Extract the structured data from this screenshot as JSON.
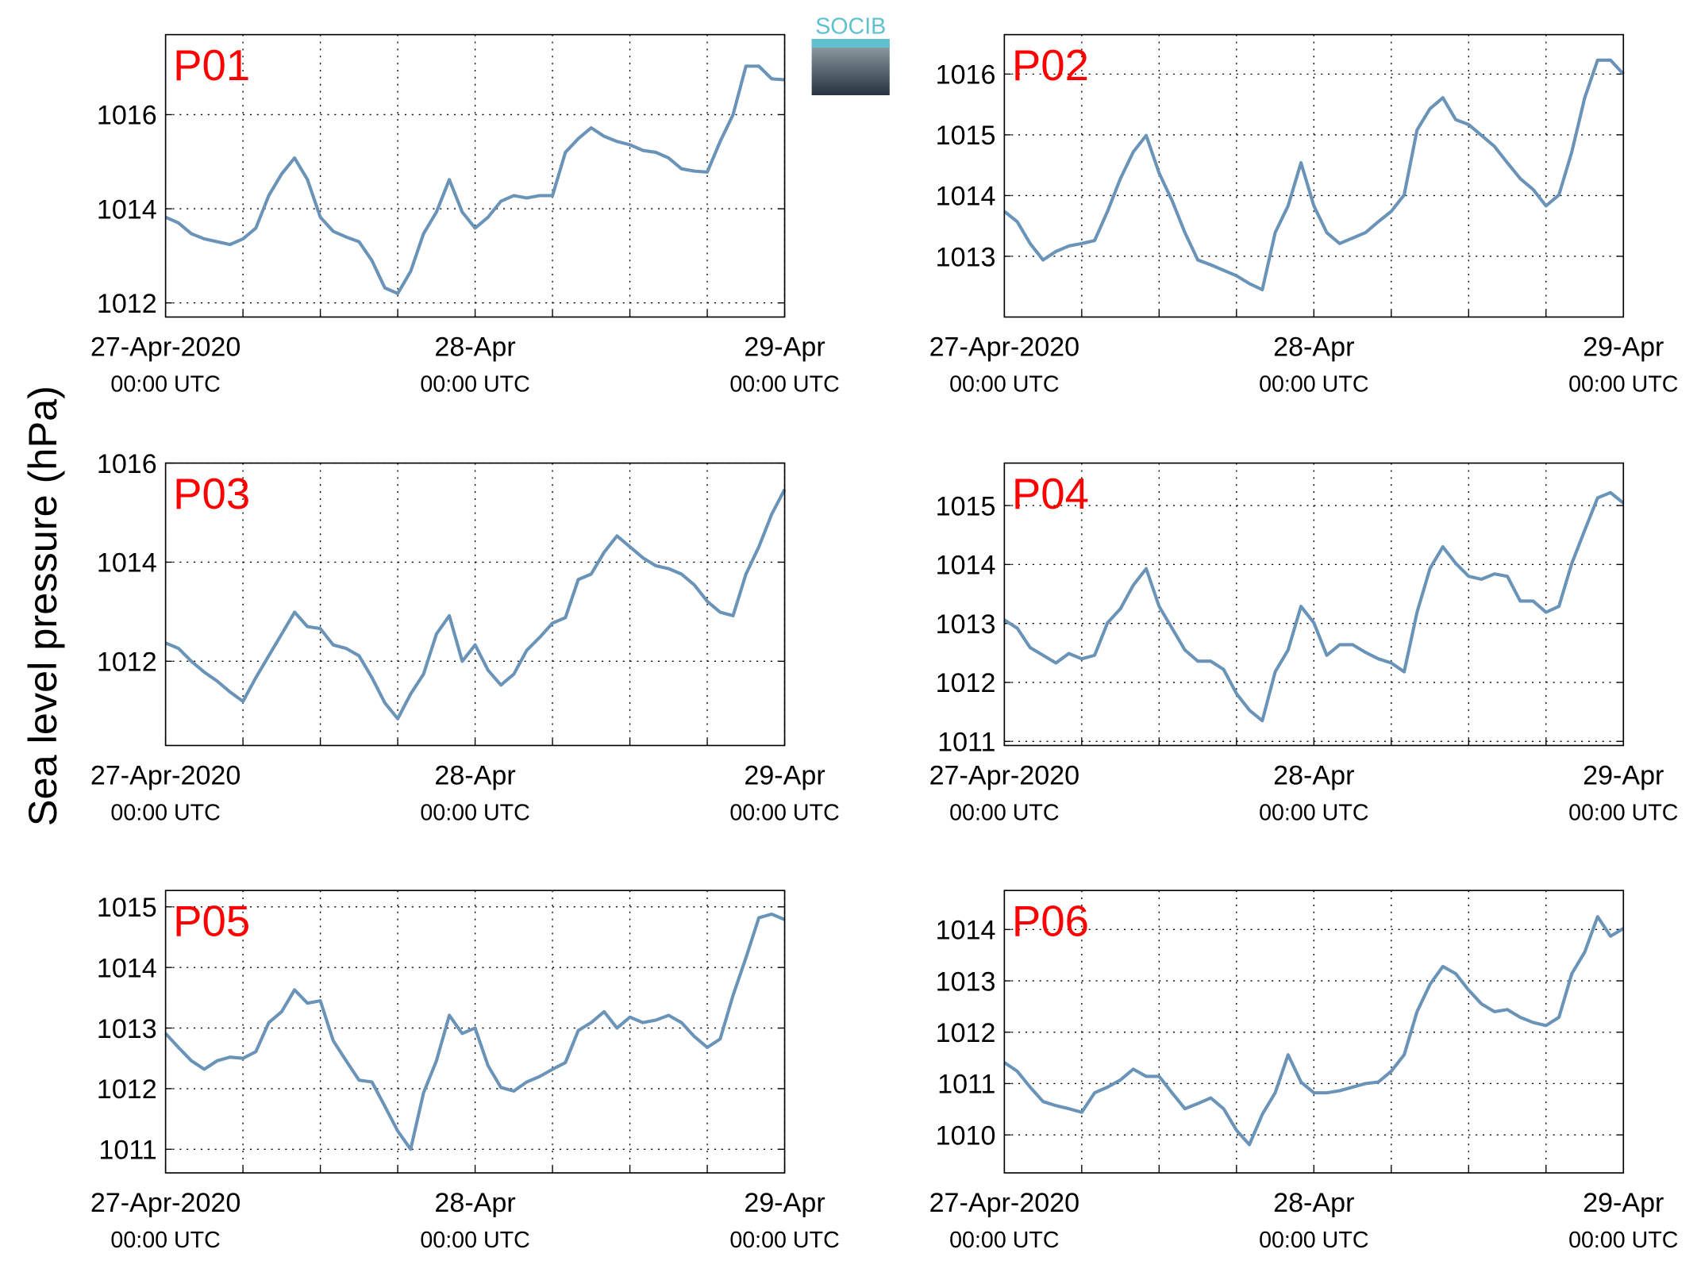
{
  "ylabel": "Sea level pressure (hPa)",
  "logo": "SOCIB",
  "chart_data": [
    {
      "type": "line",
      "title": "P01",
      "color": "#6a93b8",
      "grid": true,
      "xlim": [
        "2020-04-27T00:00",
        "2020-04-29T00:00"
      ],
      "xticks": [
        {
          "value": "2020-04-27T00:00",
          "label": "27-Apr-2020",
          "time_label": "00:00 UTC"
        },
        {
          "value": "2020-04-28T00:00",
          "label": "28-Apr",
          "time_label": "00:00 UTC"
        },
        {
          "value": "2020-04-29T00:00",
          "label": "29-Apr",
          "time_label": "00:00 UTC"
        }
      ],
      "xminor": [
        "2020-04-27T06:00",
        "2020-04-27T12:00",
        "2020-04-27T18:00",
        "2020-04-28T06:00",
        "2020-04-28T12:00",
        "2020-04-28T18:00"
      ],
      "ylim": [
        1011.7,
        1017.7
      ],
      "yticks": [
        1012,
        1014,
        1016
      ],
      "x": [
        "2020-04-27T00:00",
        "2020-04-27T01:00",
        "2020-04-27T02:00",
        "2020-04-27T03:00",
        "2020-04-27T04:00",
        "2020-04-27T05:00",
        "2020-04-27T06:00",
        "2020-04-27T07:00",
        "2020-04-27T08:00",
        "2020-04-27T09:00",
        "2020-04-27T10:00",
        "2020-04-27T11:00",
        "2020-04-27T12:00",
        "2020-04-27T13:00",
        "2020-04-27T14:00",
        "2020-04-27T15:00",
        "2020-04-27T16:00",
        "2020-04-27T17:00",
        "2020-04-27T18:00",
        "2020-04-27T19:00",
        "2020-04-27T20:00",
        "2020-04-27T21:00",
        "2020-04-27T22:00",
        "2020-04-27T23:00",
        "2020-04-28T00:00",
        "2020-04-28T01:00",
        "2020-04-28T02:00",
        "2020-04-28T03:00",
        "2020-04-28T04:00",
        "2020-04-28T05:00",
        "2020-04-28T06:00",
        "2020-04-28T07:00",
        "2020-04-28T08:00",
        "2020-04-28T09:00",
        "2020-04-28T10:00",
        "2020-04-28T11:00",
        "2020-04-28T12:00",
        "2020-04-28T13:00",
        "2020-04-28T14:00",
        "2020-04-28T15:00",
        "2020-04-28T16:00",
        "2020-04-28T17:00",
        "2020-04-28T18:00",
        "2020-04-28T19:00",
        "2020-04-28T20:00",
        "2020-04-28T21:00",
        "2020-04-28T22:00",
        "2020-04-28T23:00",
        "2020-04-29T00:00"
      ],
      "values": [
        1013.82,
        1013.7,
        1013.47,
        1013.36,
        1013.3,
        1013.24,
        1013.36,
        1013.59,
        1014.28,
        1014.74,
        1015.08,
        1014.62,
        1013.82,
        1013.52,
        1013.4,
        1013.3,
        1012.9,
        1012.32,
        1012.2,
        1012.67,
        1013.47,
        1013.93,
        1014.62,
        1013.93,
        1013.59,
        1013.82,
        1014.16,
        1014.28,
        1014.23,
        1014.28,
        1014.28,
        1015.2,
        1015.49,
        1015.72,
        1015.54,
        1015.43,
        1015.36,
        1015.24,
        1015.2,
        1015.08,
        1014.85,
        1014.8,
        1014.78,
        1015.43,
        1016.0,
        1017.03,
        1017.03,
        1016.76,
        1016.74
      ]
    },
    {
      "type": "line",
      "title": "P02",
      "color": "#6a93b8",
      "grid": true,
      "xlim": [
        "2020-04-27T00:00",
        "2020-04-29T00:00"
      ],
      "xticks": [
        {
          "value": "2020-04-27T00:00",
          "label": "27-Apr-2020",
          "time_label": "00:00 UTC"
        },
        {
          "value": "2020-04-28T00:00",
          "label": "28-Apr",
          "time_label": "00:00 UTC"
        },
        {
          "value": "2020-04-29T00:00",
          "label": "29-Apr",
          "time_label": "00:00 UTC"
        }
      ],
      "xminor": [
        "2020-04-27T06:00",
        "2020-04-27T12:00",
        "2020-04-27T18:00",
        "2020-04-28T06:00",
        "2020-04-28T12:00",
        "2020-04-28T18:00"
      ],
      "ylim": [
        1012.0,
        1016.65
      ],
      "yticks": [
        1013,
        1014,
        1015,
        1016
      ],
      "x": [
        "2020-04-27T00:00",
        "2020-04-27T01:00",
        "2020-04-27T02:00",
        "2020-04-27T03:00",
        "2020-04-27T04:00",
        "2020-04-27T05:00",
        "2020-04-27T06:00",
        "2020-04-27T07:00",
        "2020-04-27T08:00",
        "2020-04-27T09:00",
        "2020-04-27T10:00",
        "2020-04-27T11:00",
        "2020-04-27T12:00",
        "2020-04-27T13:00",
        "2020-04-27T14:00",
        "2020-04-27T15:00",
        "2020-04-27T16:00",
        "2020-04-27T17:00",
        "2020-04-27T18:00",
        "2020-04-27T19:00",
        "2020-04-27T20:00",
        "2020-04-27T21:00",
        "2020-04-27T22:00",
        "2020-04-27T23:00",
        "2020-04-28T00:00",
        "2020-04-28T01:00",
        "2020-04-28T02:00",
        "2020-04-28T03:00",
        "2020-04-28T04:00",
        "2020-04-28T05:00",
        "2020-04-28T06:00",
        "2020-04-28T07:00",
        "2020-04-28T08:00",
        "2020-04-28T09:00",
        "2020-04-28T10:00",
        "2020-04-28T11:00",
        "2020-04-28T12:00",
        "2020-04-28T13:00",
        "2020-04-28T14:00",
        "2020-04-28T15:00",
        "2020-04-28T16:00",
        "2020-04-28T17:00",
        "2020-04-28T18:00",
        "2020-04-28T19:00",
        "2020-04-28T20:00",
        "2020-04-28T21:00",
        "2020-04-28T22:00",
        "2020-04-28T23:00",
        "2020-04-29T00:00"
      ],
      "values": [
        1013.74,
        1013.57,
        1013.21,
        1012.94,
        1013.08,
        1013.17,
        1013.21,
        1013.26,
        1013.74,
        1014.28,
        1014.72,
        1014.99,
        1014.37,
        1013.92,
        1013.39,
        1012.94,
        1012.86,
        1012.77,
        1012.68,
        1012.55,
        1012.45,
        1013.39,
        1013.83,
        1014.54,
        1013.83,
        1013.39,
        1013.21,
        1013.3,
        1013.39,
        1013.57,
        1013.74,
        1014.01,
        1015.08,
        1015.43,
        1015.61,
        1015.25,
        1015.17,
        1014.99,
        1014.81,
        1014.54,
        1014.28,
        1014.1,
        1013.83,
        1014.01,
        1014.72,
        1015.61,
        1016.23,
        1016.23,
        1016.0
      ]
    },
    {
      "type": "line",
      "title": "P03",
      "color": "#6a93b8",
      "grid": true,
      "xlim": [
        "2020-04-27T00:00",
        "2020-04-29T00:00"
      ],
      "xticks": [
        {
          "value": "2020-04-27T00:00",
          "label": "27-Apr-2020",
          "time_label": "00:00 UTC"
        },
        {
          "value": "2020-04-28T00:00",
          "label": "28-Apr",
          "time_label": "00:00 UTC"
        },
        {
          "value": "2020-04-29T00:00",
          "label": "29-Apr",
          "time_label": "00:00 UTC"
        }
      ],
      "xminor": [
        "2020-04-27T06:00",
        "2020-04-27T12:00",
        "2020-04-27T18:00",
        "2020-04-28T06:00",
        "2020-04-28T12:00",
        "2020-04-28T18:00"
      ],
      "ylim": [
        1010.3,
        1016
      ],
      "yticks": [
        1012,
        1014,
        1016
      ],
      "x": [
        "2020-04-27T00:00",
        "2020-04-27T01:00",
        "2020-04-27T02:00",
        "2020-04-27T03:00",
        "2020-04-27T04:00",
        "2020-04-27T05:00",
        "2020-04-27T06:00",
        "2020-04-27T07:00",
        "2020-04-27T08:00",
        "2020-04-27T09:00",
        "2020-04-27T10:00",
        "2020-04-27T11:00",
        "2020-04-27T12:00",
        "2020-04-27T13:00",
        "2020-04-27T14:00",
        "2020-04-27T15:00",
        "2020-04-27T16:00",
        "2020-04-27T17:00",
        "2020-04-27T18:00",
        "2020-04-27T19:00",
        "2020-04-27T20:00",
        "2020-04-27T21:00",
        "2020-04-27T22:00",
        "2020-04-27T23:00",
        "2020-04-28T00:00",
        "2020-04-28T01:00",
        "2020-04-28T02:00",
        "2020-04-28T03:00",
        "2020-04-28T04:00",
        "2020-04-28T05:00",
        "2020-04-28T06:00",
        "2020-04-28T07:00",
        "2020-04-28T08:00",
        "2020-04-28T09:00",
        "2020-04-28T10:00",
        "2020-04-28T11:00",
        "2020-04-28T12:00",
        "2020-04-28T13:00",
        "2020-04-28T14:00",
        "2020-04-28T15:00",
        "2020-04-28T16:00",
        "2020-04-28T17:00",
        "2020-04-28T18:00",
        "2020-04-28T19:00",
        "2020-04-28T20:00",
        "2020-04-28T21:00",
        "2020-04-28T22:00",
        "2020-04-28T23:00",
        "2020-04-29T00:00"
      ],
      "values": [
        1012.37,
        1012.26,
        1012.0,
        1011.78,
        1011.6,
        1011.38,
        1011.19,
        1011.67,
        1012.11,
        1012.55,
        1012.99,
        1012.7,
        1012.66,
        1012.33,
        1012.26,
        1012.11,
        1011.67,
        1011.16,
        1010.84,
        1011.34,
        1011.74,
        1012.55,
        1012.92,
        1012.0,
        1012.33,
        1011.82,
        1011.52,
        1011.74,
        1012.22,
        1012.48,
        1012.77,
        1012.88,
        1013.65,
        1013.76,
        1014.2,
        1014.53,
        1014.31,
        1014.09,
        1013.93,
        1013.87,
        1013.76,
        1013.54,
        1013.21,
        1012.99,
        1012.92,
        1013.76,
        1014.31,
        1014.97,
        1015.47
      ]
    },
    {
      "type": "line",
      "title": "P04",
      "color": "#6a93b8",
      "grid": true,
      "xlim": [
        "2020-04-27T00:00",
        "2020-04-29T00:00"
      ],
      "xticks": [
        {
          "value": "2020-04-27T00:00",
          "label": "27-Apr-2020",
          "time_label": "00:00 UTC"
        },
        {
          "value": "2020-04-28T00:00",
          "label": "28-Apr",
          "time_label": "00:00 UTC"
        },
        {
          "value": "2020-04-29T00:00",
          "label": "29-Apr",
          "time_label": "00:00 UTC"
        }
      ],
      "xminor": [
        "2020-04-27T06:00",
        "2020-04-27T12:00",
        "2020-04-27T18:00",
        "2020-04-28T06:00",
        "2020-04-28T12:00",
        "2020-04-28T18:00"
      ],
      "ylim": [
        1010.93,
        1015.72
      ],
      "yticks": [
        1011,
        1012,
        1013,
        1014,
        1015
      ],
      "x": [
        "2020-04-27T00:00",
        "2020-04-27T01:00",
        "2020-04-27T02:00",
        "2020-04-27T03:00",
        "2020-04-27T04:00",
        "2020-04-27T05:00",
        "2020-04-27T06:00",
        "2020-04-27T07:00",
        "2020-04-27T08:00",
        "2020-04-27T09:00",
        "2020-04-27T10:00",
        "2020-04-27T11:00",
        "2020-04-27T12:00",
        "2020-04-27T13:00",
        "2020-04-27T14:00",
        "2020-04-27T15:00",
        "2020-04-27T16:00",
        "2020-04-27T17:00",
        "2020-04-27T18:00",
        "2020-04-27T19:00",
        "2020-04-27T20:00",
        "2020-04-27T21:00",
        "2020-04-27T22:00",
        "2020-04-27T23:00",
        "2020-04-28T00:00",
        "2020-04-28T01:00",
        "2020-04-28T02:00",
        "2020-04-28T03:00",
        "2020-04-28T04:00",
        "2020-04-28T05:00",
        "2020-04-28T06:00",
        "2020-04-28T07:00",
        "2020-04-28T08:00",
        "2020-04-28T09:00",
        "2020-04-28T10:00",
        "2020-04-28T11:00",
        "2020-04-28T12:00",
        "2020-04-28T13:00",
        "2020-04-28T14:00",
        "2020-04-28T15:00",
        "2020-04-28T16:00",
        "2020-04-28T17:00",
        "2020-04-28T18:00",
        "2020-04-28T19:00",
        "2020-04-28T20:00",
        "2020-04-28T21:00",
        "2020-04-28T22:00",
        "2020-04-28T23:00",
        "2020-04-29T00:00"
      ],
      "values": [
        1013.06,
        1012.92,
        1012.59,
        1012.46,
        1012.33,
        1012.49,
        1012.4,
        1012.46,
        1013.01,
        1013.25,
        1013.65,
        1013.93,
        1013.29,
        1012.92,
        1012.55,
        1012.36,
        1012.36,
        1012.22,
        1011.81,
        1011.53,
        1011.35,
        1012.18,
        1012.55,
        1013.29,
        1013.01,
        1012.46,
        1012.64,
        1012.64,
        1012.51,
        1012.4,
        1012.33,
        1012.18,
        1013.19,
        1013.93,
        1014.3,
        1014.02,
        1013.8,
        1013.75,
        1013.84,
        1013.8,
        1013.38,
        1013.38,
        1013.19,
        1013.29,
        1014.02,
        1014.58,
        1015.13,
        1015.22,
        1015.04
      ]
    },
    {
      "type": "line",
      "title": "P05",
      "color": "#6a93b8",
      "grid": true,
      "xlim": [
        "2020-04-27T00:00",
        "2020-04-29T00:00"
      ],
      "xticks": [
        {
          "value": "2020-04-27T00:00",
          "label": "27-Apr-2020",
          "time_label": "00:00 UTC"
        },
        {
          "value": "2020-04-28T00:00",
          "label": "28-Apr",
          "time_label": "00:00 UTC"
        },
        {
          "value": "2020-04-29T00:00",
          "label": "29-Apr",
          "time_label": "00:00 UTC"
        }
      ],
      "xminor": [
        "2020-04-27T06:00",
        "2020-04-27T12:00",
        "2020-04-27T18:00",
        "2020-04-28T06:00",
        "2020-04-28T12:00",
        "2020-04-28T18:00"
      ],
      "ylim": [
        1010.61,
        1015.27
      ],
      "yticks": [
        1011,
        1012,
        1013,
        1014,
        1015
      ],
      "x": [
        "2020-04-27T00:00",
        "2020-04-27T01:00",
        "2020-04-27T02:00",
        "2020-04-27T03:00",
        "2020-04-27T04:00",
        "2020-04-27T05:00",
        "2020-04-27T06:00",
        "2020-04-27T07:00",
        "2020-04-27T08:00",
        "2020-04-27T09:00",
        "2020-04-27T10:00",
        "2020-04-27T11:00",
        "2020-04-27T12:00",
        "2020-04-27T13:00",
        "2020-04-27T14:00",
        "2020-04-27T15:00",
        "2020-04-27T16:00",
        "2020-04-27T17:00",
        "2020-04-27T18:00",
        "2020-04-27T19:00",
        "2020-04-27T20:00",
        "2020-04-27T21:00",
        "2020-04-27T22:00",
        "2020-04-27T23:00",
        "2020-04-28T00:00",
        "2020-04-28T01:00",
        "2020-04-28T02:00",
        "2020-04-28T03:00",
        "2020-04-28T04:00",
        "2020-04-28T05:00",
        "2020-04-28T06:00",
        "2020-04-28T07:00",
        "2020-04-28T08:00",
        "2020-04-28T09:00",
        "2020-04-28T10:00",
        "2020-04-28T11:00",
        "2020-04-28T12:00",
        "2020-04-28T13:00",
        "2020-04-28T14:00",
        "2020-04-28T15:00",
        "2020-04-28T16:00",
        "2020-04-28T17:00",
        "2020-04-28T18:00",
        "2020-04-28T19:00",
        "2020-04-28T20:00",
        "2020-04-28T21:00",
        "2020-04-28T22:00",
        "2020-04-28T23:00",
        "2020-04-29T00:00"
      ],
      "values": [
        1012.91,
        1012.68,
        1012.46,
        1012.32,
        1012.46,
        1012.52,
        1012.5,
        1012.61,
        1013.09,
        1013.27,
        1013.63,
        1013.41,
        1013.45,
        1012.79,
        1012.46,
        1012.14,
        1012.11,
        1011.71,
        1011.3,
        1011.0,
        1011.93,
        1012.46,
        1013.21,
        1012.91,
        1013.0,
        1012.38,
        1012.02,
        1011.96,
        1012.11,
        1012.2,
        1012.32,
        1012.43,
        1012.96,
        1013.09,
        1013.27,
        1013.0,
        1013.18,
        1013.09,
        1013.13,
        1013.21,
        1013.09,
        1012.86,
        1012.68,
        1012.82,
        1013.54,
        1014.16,
        1014.82,
        1014.88,
        1014.79
      ]
    },
    {
      "type": "line",
      "title": "P06",
      "color": "#6a93b8",
      "grid": true,
      "xlim": [
        "2020-04-27T00:00",
        "2020-04-29T00:00"
      ],
      "xticks": [
        {
          "value": "2020-04-27T00:00",
          "label": "27-Apr-2020",
          "time_label": "00:00 UTC"
        },
        {
          "value": "2020-04-28T00:00",
          "label": "28-Apr",
          "time_label": "00:00 UTC"
        },
        {
          "value": "2020-04-29T00:00",
          "label": "29-Apr",
          "time_label": "00:00 UTC"
        }
      ],
      "xminor": [
        "2020-04-27T06:00",
        "2020-04-27T12:00",
        "2020-04-27T18:00",
        "2020-04-28T06:00",
        "2020-04-28T12:00",
        "2020-04-28T18:00"
      ],
      "ylim": [
        1009.26,
        1014.76
      ],
      "yticks": [
        1010,
        1011,
        1012,
        1013,
        1014
      ],
      "x": [
        "2020-04-27T00:00",
        "2020-04-27T01:00",
        "2020-04-27T02:00",
        "2020-04-27T03:00",
        "2020-04-27T04:00",
        "2020-04-27T05:00",
        "2020-04-27T06:00",
        "2020-04-27T07:00",
        "2020-04-27T08:00",
        "2020-04-27T09:00",
        "2020-04-27T10:00",
        "2020-04-27T11:00",
        "2020-04-27T12:00",
        "2020-04-27T13:00",
        "2020-04-27T14:00",
        "2020-04-27T15:00",
        "2020-04-27T16:00",
        "2020-04-27T17:00",
        "2020-04-27T18:00",
        "2020-04-27T19:00",
        "2020-04-27T20:00",
        "2020-04-27T21:00",
        "2020-04-27T22:00",
        "2020-04-27T23:00",
        "2020-04-28T00:00",
        "2020-04-28T01:00",
        "2020-04-28T02:00",
        "2020-04-28T03:00",
        "2020-04-28T04:00",
        "2020-04-28T05:00",
        "2020-04-28T06:00",
        "2020-04-28T07:00",
        "2020-04-28T08:00",
        "2020-04-28T09:00",
        "2020-04-28T10:00",
        "2020-04-28T11:00",
        "2020-04-28T12:00",
        "2020-04-28T13:00",
        "2020-04-28T14:00",
        "2020-04-28T15:00",
        "2020-04-28T16:00",
        "2020-04-28T17:00",
        "2020-04-28T18:00",
        "2020-04-28T19:00",
        "2020-04-28T20:00",
        "2020-04-28T21:00",
        "2020-04-28T22:00",
        "2020-04-28T23:00",
        "2020-04-29T00:00"
      ],
      "values": [
        1011.41,
        1011.24,
        1010.93,
        1010.65,
        1010.57,
        1010.51,
        1010.44,
        1010.82,
        1010.93,
        1011.07,
        1011.28,
        1011.14,
        1011.14,
        1010.82,
        1010.51,
        1010.61,
        1010.72,
        1010.51,
        1010.09,
        1009.81,
        1010.4,
        1010.82,
        1011.56,
        1011.03,
        1010.82,
        1010.82,
        1010.86,
        1010.93,
        1011.0,
        1011.03,
        1011.24,
        1011.56,
        1012.4,
        1012.93,
        1013.28,
        1013.14,
        1012.82,
        1012.55,
        1012.4,
        1012.44,
        1012.29,
        1012.19,
        1012.13,
        1012.29,
        1013.14,
        1013.56,
        1014.25,
        1013.87,
        1014.02
      ]
    }
  ]
}
